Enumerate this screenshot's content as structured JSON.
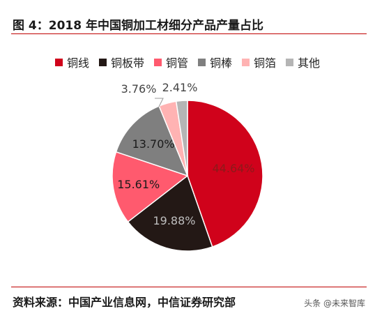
{
  "title": "图 4：2018  年中国铜加工材细分产品产量占比",
  "source": "资料来源：中国产业信息网，中信证券研究部",
  "watermark": "头条 @未来智库",
  "chart_data": {
    "type": "pie",
    "categories": [
      "铜线",
      "铜板带",
      "铜管",
      "铜棒",
      "铜箔",
      "其他"
    ],
    "values": [
      44.64,
      19.88,
      15.61,
      13.7,
      3.76,
      2.41
    ],
    "labels": [
      "44.64%",
      "19.88%",
      "15.61%",
      "13.70%",
      "3.76%",
      "2.41%"
    ],
    "colors": [
      "#d0021b",
      "#231815",
      "#ff5a6e",
      "#7f7f7f",
      "#ffb3b3",
      "#b5b5b5"
    ],
    "label_colors": [
      "#8b1a1a",
      "#bfbfbf",
      "#1a1a1a",
      "#1a1a1a",
      "#444444",
      "#444444"
    ],
    "start_angle_deg": 0,
    "direction": "clockwise",
    "legend_position": "top"
  }
}
